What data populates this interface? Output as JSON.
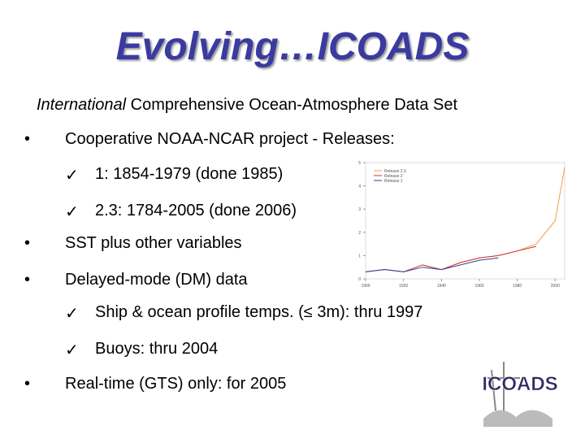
{
  "slide": {
    "title": "Evolving…ICOADS",
    "subtitle_italic": "International",
    "subtitle_rest": " Comprehensive Ocean-Atmosphere Data Set",
    "items": [
      {
        "level": 1,
        "text": "Cooperative NOAA-NCAR project  -  Releases:"
      },
      {
        "level": 2,
        "text": "1: 1854-1979 (done 1985)"
      },
      {
        "level": 2,
        "text": "2.3: 1784-2005 (done 2006)"
      },
      {
        "level": 1,
        "text": "SST plus other variables"
      },
      {
        "level": 1,
        "text": "Delayed-mode (DM) data"
      },
      {
        "level": 2,
        "text": "Ship & ocean profile temps. (≤ 3m): thru 1997"
      },
      {
        "level": 2,
        "text": "Buoys: thru 2004"
      },
      {
        "level": 1,
        "text": "Real-time (GTS) only: for 2005"
      }
    ],
    "logo": "ICOADS"
  },
  "chart_data": {
    "type": "line",
    "x": [
      1900,
      1910,
      1920,
      1930,
      1940,
      1950,
      1960,
      1970,
      1980,
      1990,
      2000,
      2005
    ],
    "series": [
      {
        "name": "Release 2.3",
        "color": "#f0a040",
        "values": [
          0.3,
          0.4,
          0.3,
          0.6,
          0.4,
          0.7,
          0.9,
          1.0,
          1.2,
          1.5,
          2.5,
          4.8
        ]
      },
      {
        "name": "Release 2",
        "color": "#d03030",
        "values": [
          0.3,
          0.4,
          0.3,
          0.6,
          0.4,
          0.7,
          0.9,
          1.0,
          1.2,
          1.4,
          null,
          null
        ]
      },
      {
        "name": "Release 1",
        "color": "#3040a0",
        "values": [
          0.3,
          0.4,
          0.3,
          0.5,
          0.4,
          0.6,
          0.8,
          0.9,
          null,
          null,
          null,
          null
        ]
      }
    ],
    "xlim": [
      1900,
      2005
    ],
    "xticks": [
      1900,
      1920,
      1940,
      1960,
      1980,
      2000
    ],
    "ylim": [
      0,
      5
    ],
    "yticks": [
      0,
      1,
      2,
      3,
      4,
      5
    ]
  }
}
